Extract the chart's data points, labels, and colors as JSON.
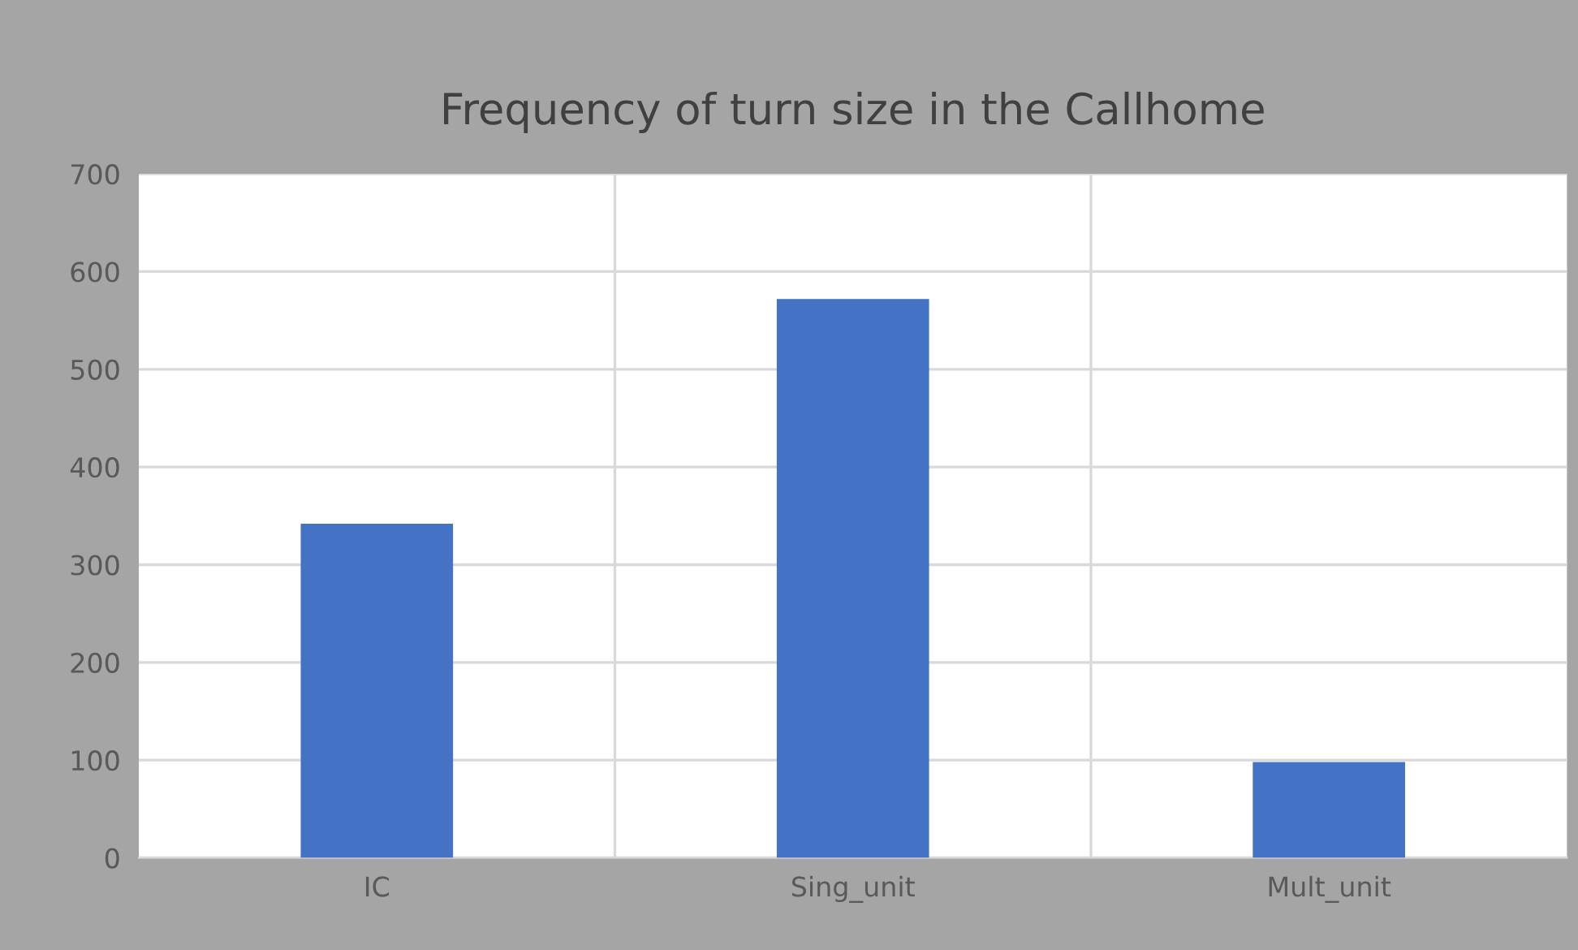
{
  "chart_data": {
    "type": "bar",
    "title": "Frequency of turn size in the Callhome",
    "categories": [
      "IC",
      "Sing_unit",
      "Mult_unit"
    ],
    "values": [
      342,
      572,
      98
    ],
    "color": "#4472c4",
    "ylim": [
      0,
      700
    ],
    "yticks": [
      0,
      100,
      200,
      300,
      400,
      500,
      600,
      700
    ],
    "grid": true
  }
}
